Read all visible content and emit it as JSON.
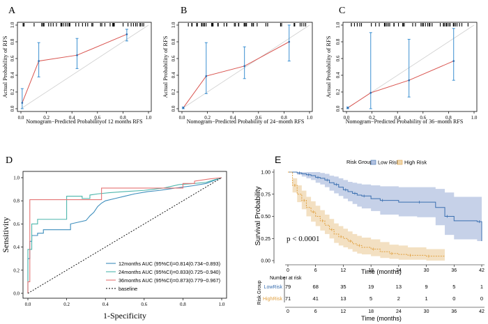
{
  "chart_data": [
    {
      "id": "A",
      "type": "line",
      "panel_label": "A",
      "title": "",
      "xlabel": "Nomogram−Predicted Probabilityof 12 months RFS",
      "ylabel": "Actual Probability of RFS",
      "xlim": [
        0,
        1
      ],
      "ylim": [
        0,
        1
      ],
      "x_ticks": [
        "0.0",
        "0.2",
        "0.4",
        "0.6",
        "0.8",
        "1.0"
      ],
      "y_ticks": [
        "0.0",
        "0.2",
        "0.4",
        "0.6",
        "0.8",
        "1.0"
      ],
      "points": [
        {
          "x": 0.01,
          "y": 0.07,
          "lo": 0.0,
          "hi": 0.24
        },
        {
          "x": 0.14,
          "y": 0.57,
          "lo": 0.38,
          "hi": 0.79
        },
        {
          "x": 0.44,
          "y": 0.64,
          "lo": 0.48,
          "hi": 0.84
        },
        {
          "x": 0.83,
          "y": 0.89,
          "lo": 0.81,
          "hi": 0.95
        }
      ]
    },
    {
      "id": "B",
      "type": "line",
      "panel_label": "B",
      "title": "",
      "xlabel": "Nomogram−Predicted Probability of 24−month RFS",
      "ylabel": "Actual Probability of RFS",
      "xlim": [
        0,
        1
      ],
      "ylim": [
        0,
        1
      ],
      "x_ticks": [
        "0.0",
        "0.2",
        "0.4",
        "0.6",
        "0.8",
        "1.0"
      ],
      "y_ticks": [
        "0.0",
        "0.2",
        "0.4",
        "0.6",
        "0.8",
        "1.0"
      ],
      "points": [
        {
          "x": 0.01,
          "y": 0.01,
          "lo": 0.0,
          "hi": 0.02
        },
        {
          "x": 0.19,
          "y": 0.39,
          "lo": 0.18,
          "hi": 0.79
        },
        {
          "x": 0.49,
          "y": 0.51,
          "lo": 0.36,
          "hi": 0.74
        },
        {
          "x": 0.84,
          "y": 0.8,
          "lo": 0.57,
          "hi": 1.0
        }
      ]
    },
    {
      "id": "C",
      "type": "line",
      "panel_label": "C",
      "title": "",
      "xlabel": "Nomogram−Predicted Probability of 36−month RFS",
      "ylabel": "Actual Probability of RFS",
      "xlim": [
        0,
        1
      ],
      "ylim": [
        0,
        1
      ],
      "x_ticks": [
        "0.0",
        "0.2",
        "0.4",
        "0.6",
        "0.8",
        "1.0"
      ],
      "y_ticks": [
        "0.0",
        "0.2",
        "0.4",
        "0.6",
        "0.8",
        "1.0"
      ],
      "points": [
        {
          "x": 0.01,
          "y": 0.01,
          "lo": 0.0,
          "hi": 0.02
        },
        {
          "x": 0.19,
          "y": 0.19,
          "lo": 0.0,
          "hi": 0.91
        },
        {
          "x": 0.49,
          "y": 0.34,
          "lo": 0.14,
          "hi": 0.83
        },
        {
          "x": 0.84,
          "y": 0.57,
          "lo": 0.34,
          "hi": 0.96
        }
      ]
    },
    {
      "id": "D",
      "type": "line",
      "panel_label": "D",
      "title": "",
      "xlabel": "1-Specificity",
      "ylabel": "Sensitivity",
      "xlim": [
        0,
        1
      ],
      "ylim": [
        0,
        1
      ],
      "x_ticks": [
        "0.0",
        "0.2",
        "0.4",
        "0.6",
        "0.8",
        "1.0"
      ],
      "y_ticks": [
        "0.0",
        "0.2",
        "0.4",
        "0.6",
        "0.8",
        "1.0"
      ],
      "legend_position": "bottom-right",
      "series": [
        {
          "name": "12months AUC (95%CI)=0.814(0.734−0.893)",
          "color": "#3c8dbc",
          "x": [
            0,
            0,
            0.01,
            0.01,
            0.02,
            0.02,
            0.05,
            0.05,
            0.08,
            0.08,
            0.22,
            0.22,
            0.3,
            0.32,
            0.34,
            0.36,
            0.38,
            0.4,
            0.45,
            0.5,
            0.55,
            0.62,
            0.68,
            0.72,
            0.76,
            0.85,
            0.92,
            1.0
          ],
          "y": [
            0,
            0.3,
            0.3,
            0.45,
            0.45,
            0.5,
            0.5,
            0.52,
            0.52,
            0.55,
            0.55,
            0.6,
            0.63,
            0.67,
            0.7,
            0.75,
            0.78,
            0.8,
            0.82,
            0.84,
            0.86,
            0.88,
            0.89,
            0.9,
            0.91,
            0.93,
            0.95,
            1.0
          ]
        },
        {
          "name": "24months AUC (95%CI)=0.833(0.725−0.940)",
          "color": "#4db6ac",
          "x": [
            0,
            0,
            0.02,
            0.02,
            0.05,
            0.05,
            0.2,
            0.2,
            0.28,
            0.28,
            0.32,
            0.32,
            0.36,
            0.42,
            0.5,
            0.6,
            0.7,
            0.78,
            0.86,
            0.92,
            0.96,
            1.0
          ],
          "y": [
            0,
            0.38,
            0.38,
            0.6,
            0.6,
            0.64,
            0.64,
            0.84,
            0.84,
            0.82,
            0.82,
            0.85,
            0.86,
            0.87,
            0.88,
            0.89,
            0.91,
            0.94,
            0.95,
            0.96,
            0.98,
            1.0
          ]
        },
        {
          "name": "36months AUC (95%CI)=0.873(0.779−0.967)",
          "color": "#e57373",
          "x": [
            0,
            0,
            0.01,
            0.01,
            0.38,
            0.38,
            0.8,
            0.8,
            0.86,
            0.86,
            0.94,
            1.0
          ],
          "y": [
            0,
            0.1,
            0.1,
            0.81,
            0.81,
            0.91,
            0.91,
            0.95,
            0.95,
            0.97,
            0.99,
            1.0
          ]
        },
        {
          "name": "baseline",
          "color": "#000000",
          "dashed": true,
          "x": [
            0,
            1
          ],
          "y": [
            0,
            1
          ]
        }
      ]
    },
    {
      "id": "E",
      "type": "line",
      "panel_label": "E",
      "title": "",
      "legend_title": "Risk Group",
      "xlabel": "Time (months)",
      "ylabel": "Survival Probability",
      "xlim": [
        0,
        42
      ],
      "ylim": [
        0,
        1
      ],
      "x_ticks": [
        "0",
        "6",
        "12",
        "18",
        "24",
        "30",
        "36",
        "42"
      ],
      "y_ticks": [
        "0.00",
        "0.25",
        "0.50",
        "0.75",
        "1.00"
      ],
      "annotation": "p < 0.0001",
      "series": [
        {
          "name": "Low Risk",
          "color": "#3a6fb0",
          "fill": "#b3c2e0",
          "x": [
            0,
            2,
            3,
            4,
            5,
            6,
            7,
            8,
            9,
            10,
            11,
            12,
            13,
            14,
            15,
            16,
            18,
            20,
            24,
            28,
            32,
            34,
            36,
            41,
            42
          ],
          "y": [
            1.0,
            0.99,
            0.98,
            0.97,
            0.96,
            0.94,
            0.93,
            0.91,
            0.88,
            0.86,
            0.83,
            0.8,
            0.78,
            0.76,
            0.74,
            0.73,
            0.7,
            0.68,
            0.66,
            0.66,
            0.6,
            0.5,
            0.45,
            0.44,
            0.22
          ],
          "lo": [
            1.0,
            0.97,
            0.95,
            0.93,
            0.91,
            0.88,
            0.86,
            0.83,
            0.79,
            0.76,
            0.73,
            0.7,
            0.67,
            0.64,
            0.61,
            0.59,
            0.56,
            0.52,
            0.5,
            0.49,
            0.4,
            0.29,
            0.24,
            0.22,
            0.02
          ],
          "hi": [
            1.0,
            1.0,
            1.0,
            1.0,
            1.0,
            1.0,
            0.99,
            0.98,
            0.96,
            0.95,
            0.93,
            0.91,
            0.89,
            0.88,
            0.87,
            0.86,
            0.85,
            0.84,
            0.83,
            0.83,
            0.81,
            0.77,
            0.72,
            0.72,
            0.96
          ]
        },
        {
          "name": "High Risk",
          "color": "#e0a040",
          "fill": "#efd6ad",
          "x": [
            0,
            1,
            2,
            3,
            4,
            5,
            6,
            7,
            8,
            9,
            10,
            11,
            12,
            13,
            14,
            15,
            16,
            18,
            20,
            22,
            24,
            26,
            28,
            30,
            34
          ],
          "y": [
            1.0,
            0.85,
            0.75,
            0.68,
            0.6,
            0.55,
            0.5,
            0.45,
            0.4,
            0.35,
            0.3,
            0.27,
            0.25,
            0.22,
            0.19,
            0.17,
            0.15,
            0.13,
            0.1,
            0.08,
            0.07,
            0.06,
            0.06,
            0.05,
            0.05
          ],
          "lo": [
            1.0,
            0.77,
            0.66,
            0.58,
            0.5,
            0.44,
            0.39,
            0.34,
            0.3,
            0.25,
            0.2,
            0.17,
            0.15,
            0.13,
            0.1,
            0.08,
            0.07,
            0.05,
            0.03,
            0.02,
            0.01,
            0.01,
            0.01,
            0.0,
            0.0
          ],
          "hi": [
            1.0,
            0.93,
            0.85,
            0.79,
            0.72,
            0.67,
            0.62,
            0.57,
            0.52,
            0.47,
            0.42,
            0.39,
            0.36,
            0.33,
            0.3,
            0.28,
            0.26,
            0.24,
            0.21,
            0.18,
            0.17,
            0.15,
            0.15,
            0.13,
            0.13
          ]
        }
      ],
      "risk_table": {
        "title": "Number at risk",
        "ylabel": "Risk Group",
        "xlabel": "Time (months)",
        "times": [
          0,
          6,
          12,
          18,
          24,
          30,
          36,
          42
        ],
        "rows": [
          {
            "label": "LowRisk",
            "color": "#3a6fb0",
            "counts": [
              "79",
              "68",
              "35",
              "19",
              "13",
              "9",
              "5",
              "1"
            ]
          },
          {
            "label": "HighRisk",
            "color": "#e0a040",
            "counts": [
              "71",
              "41",
              "13",
              "5",
              "2",
              "1",
              "0",
              "0"
            ]
          }
        ]
      }
    }
  ]
}
